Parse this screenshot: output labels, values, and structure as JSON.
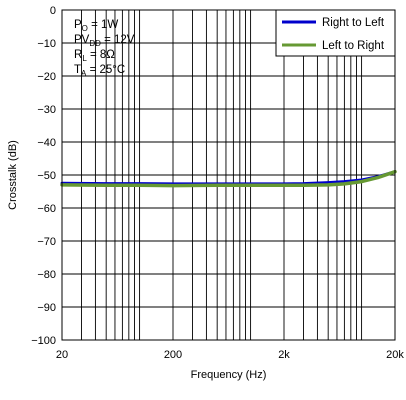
{
  "chart_data": {
    "type": "line",
    "xlabel": "Frequency (Hz)",
    "ylabel": "Crosstalk (dB)",
    "x_scale": "log",
    "xlim": [
      20,
      20000
    ],
    "ylim": [
      -100,
      0
    ],
    "grid": true,
    "x_ticks": [
      {
        "value": 20,
        "label": "20"
      },
      {
        "value": 200,
        "label": "200"
      },
      {
        "value": 2000,
        "label": "2k"
      },
      {
        "value": 20000,
        "label": "20k"
      }
    ],
    "y_ticks": [
      {
        "value": 0,
        "label": "0"
      },
      {
        "value": -10,
        "label": "−10"
      },
      {
        "value": -20,
        "label": "−20"
      },
      {
        "value": -30,
        "label": "−30"
      },
      {
        "value": -40,
        "label": "−40"
      },
      {
        "value": -50,
        "label": "−50"
      },
      {
        "value": -60,
        "label": "−60"
      },
      {
        "value": -70,
        "label": "−70"
      },
      {
        "value": -80,
        "label": "−80"
      },
      {
        "value": -90,
        "label": "−90"
      },
      {
        "value": -100,
        "label": "−100"
      }
    ],
    "conditions": [
      {
        "sym": "P",
        "sub": "O",
        "rest": " = 1W"
      },
      {
        "sym": "PV",
        "sub": "DD",
        "rest": " = 12V"
      },
      {
        "sym": "R",
        "sub": "L",
        "rest": " = 8Ω"
      },
      {
        "sym": "T",
        "sub": "A",
        "rest": " = 25°C"
      }
    ],
    "legend_position": "top-right",
    "series": [
      {
        "name": "Right to Left",
        "color": "#0000cc",
        "x": [
          20,
          50,
          100,
          200,
          500,
          1000,
          2000,
          3000,
          5000,
          7000,
          10000,
          14000,
          20000
        ],
        "y": [
          -52.5,
          -52.6,
          -52.6,
          -52.7,
          -52.7,
          -52.7,
          -52.7,
          -52.6,
          -52.3,
          -52.0,
          -51.5,
          -50.5,
          -49.0
        ]
      },
      {
        "name": "Left to Right",
        "color": "#669933",
        "x": [
          20,
          50,
          100,
          200,
          500,
          1000,
          2000,
          3000,
          5000,
          7000,
          10000,
          14000,
          20000
        ],
        "y": [
          -53.0,
          -53.1,
          -53.1,
          -53.2,
          -53.1,
          -53.1,
          -53.1,
          -53.1,
          -53.0,
          -52.7,
          -52.0,
          -50.8,
          -49.0
        ]
      }
    ]
  }
}
